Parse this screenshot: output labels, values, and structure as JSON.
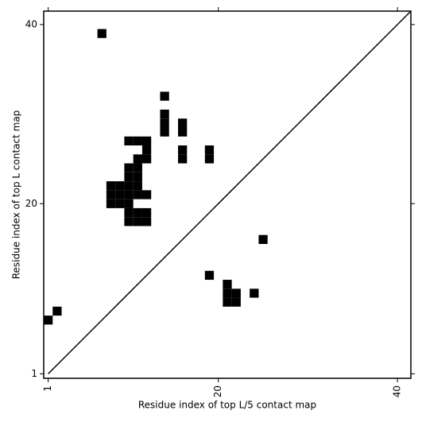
{
  "chart_data": {
    "type": "contact_map",
    "xlabel": "Residue index of top L/5 contact map",
    "ylabel": "Residue index of top L contact map",
    "xlim": [
      0.5,
      41.5
    ],
    "ylim": [
      0.5,
      41.5
    ],
    "xticks": [
      1,
      20,
      40
    ],
    "yticks": [
      1,
      20,
      40
    ],
    "color": "#000000",
    "cells": {
      "x": [
        7,
        14,
        14,
        14,
        14,
        16,
        16,
        16,
        16,
        19,
        19,
        10,
        11,
        12,
        12,
        12,
        11,
        10,
        11,
        10,
        11,
        8,
        9,
        10,
        11,
        8,
        9,
        10,
        11,
        12,
        8,
        9,
        10,
        10,
        11,
        12,
        10,
        11,
        12,
        25,
        19,
        21,
        21,
        22,
        21,
        22,
        24,
        2,
        1
      ],
      "y": [
        39,
        32,
        30,
        29,
        28,
        29,
        28,
        26,
        25,
        26,
        25,
        27,
        27,
        27,
        26,
        25,
        25,
        24,
        24,
        23,
        23,
        22,
        22,
        22,
        22,
        21,
        21,
        21,
        21,
        21,
        20,
        20,
        20,
        19,
        19,
        19,
        18,
        18,
        18,
        16,
        12,
        11,
        10,
        10,
        9,
        9,
        10,
        8,
        7
      ]
    },
    "diagonal": {
      "x": [
        1,
        41.5
      ],
      "y": [
        1,
        41.5
      ]
    }
  }
}
